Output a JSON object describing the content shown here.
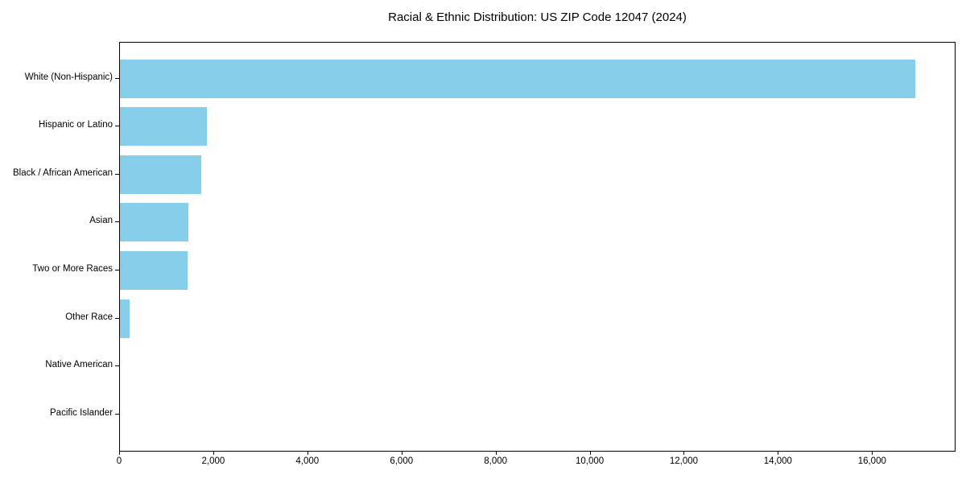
{
  "chart_data": {
    "type": "bar",
    "orientation": "horizontal",
    "title": "Racial & Ethnic Distribution: US ZIP Code 12047 (2024)",
    "categories": [
      "White (Non-Hispanic)",
      "Hispanic or Latino",
      "Black / African American",
      "Asian",
      "Two or More Races",
      "Other Race",
      "Native American",
      "Pacific Islander"
    ],
    "values": [
      16900,
      1850,
      1725,
      1450,
      1435,
      205,
      0,
      0
    ],
    "xlabel": "",
    "ylabel": "",
    "xlim": [
      0,
      17740
    ],
    "x_ticks": [
      0,
      2000,
      4000,
      6000,
      8000,
      10000,
      12000,
      14000,
      16000
    ],
    "x_tick_labels": [
      "0",
      "2,000",
      "4,000",
      "6,000",
      "8,000",
      "10,000",
      "12,000",
      "14,000",
      "16,000"
    ],
    "grid": false,
    "legend": null,
    "bar_color": "#87CEEB",
    "spine_color": "#000000",
    "text_color": "#000000",
    "background_color": "#ffffff"
  }
}
